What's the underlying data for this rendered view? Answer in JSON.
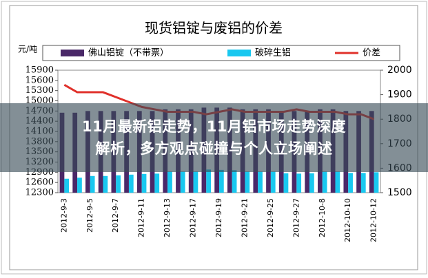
{
  "chart_data": {
    "type": "bar-line",
    "title": "现货铝锭与废铝的价差",
    "ylabel": "元/吨",
    "categories": [
      "2012-9-3",
      null,
      "2012-9-5",
      null,
      "2012-9-7",
      null,
      "2012-9-11",
      null,
      "2012-9-13",
      null,
      "2012-9-17",
      null,
      "2012-9-19",
      null,
      "2012-9-21",
      null,
      "2012-9-25",
      null,
      "2012-9-27",
      null,
      "2012-10-8",
      null,
      "2012-10-10",
      null,
      "2012-10-12"
    ],
    "series": [
      {
        "name": "佛山铝锭（不带票）",
        "color": "#4a2868",
        "values": [
          14650,
          14650,
          14700,
          14700,
          14700,
          14700,
          14700,
          14700,
          14750,
          14750,
          14750,
          14800,
          14800,
          14800,
          14750,
          14750,
          14750,
          14700,
          14700,
          14700,
          14750,
          14750,
          14700,
          14700,
          14700
        ]
      },
      {
        "name": "破碎生铝",
        "color": "#19c8f0",
        "values": [
          12710,
          12740,
          12790,
          12790,
          12810,
          12830,
          12850,
          12860,
          12920,
          12920,
          12920,
          12980,
          12970,
          12960,
          12920,
          12920,
          12920,
          12870,
          12860,
          12870,
          12920,
          12920,
          12880,
          12880,
          12900
        ]
      },
      {
        "name": "价差",
        "color": "#e0302a",
        "axis": "y2",
        "values": [
          1940,
          1910,
          1910,
          1910,
          1890,
          1870,
          1850,
          1840,
          1830,
          1830,
          1830,
          1820,
          1830,
          1840,
          1830,
          1830,
          1830,
          1830,
          1840,
          1830,
          1830,
          1830,
          1820,
          1820,
          1800
        ]
      }
    ],
    "ylim": [
      12300,
      15900
    ],
    "yticks": [
      12300,
      12600,
      12900,
      13200,
      13500,
      13800,
      14100,
      14400,
      14700,
      15000,
      15300,
      15600,
      15900
    ],
    "y2lim": [
      1500,
      2000
    ],
    "y2ticks": [
      1500,
      1600,
      1700,
      1800,
      1900,
      2000
    ]
  },
  "banner": {
    "lines": [
      "11月最新铝走势，11月铝市场走势深度",
      "解析，多方观点碰撞与个人立场阐述"
    ]
  }
}
